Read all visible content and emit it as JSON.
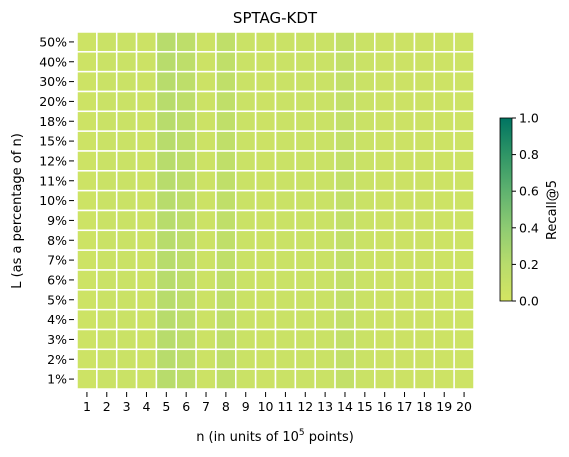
{
  "chart_data": {
    "type": "heatmap",
    "title": "SPTAG-KDT",
    "xlabel": "n (in units of 10",
    "xlabel_sup": "5",
    "xlabel_tail": " points)",
    "ylabel": "L (as a percentage of n)",
    "x_categories": [
      "1",
      "2",
      "3",
      "4",
      "5",
      "6",
      "7",
      "8",
      "9",
      "10",
      "11",
      "12",
      "13",
      "14",
      "15",
      "16",
      "17",
      "18",
      "19",
      "20"
    ],
    "y_categories": [
      "50%",
      "40%",
      "30%",
      "20%",
      "18%",
      "15%",
      "12%",
      "11%",
      "10%",
      "9%",
      "8%",
      "7%",
      "6%",
      "5%",
      "4%",
      "3%",
      "2%",
      "1%"
    ],
    "column_values": [
      0.05,
      0.07,
      0.07,
      0.06,
      0.2,
      0.16,
      0.06,
      0.14,
      0.07,
      0.06,
      0.07,
      0.07,
      0.07,
      0.12,
      0.07,
      0.06,
      0.06,
      0.06,
      0.05,
      0.05
    ],
    "colorbar": {
      "label": "Recall@5",
      "range": [
        0.0,
        1.0
      ],
      "ticks": [
        "0.0",
        "0.2",
        "0.4",
        "0.6",
        "0.8",
        "1.0"
      ],
      "colormap": [
        "#d4e562",
        "#b8dc6c",
        "#8ecb72",
        "#5fb26f",
        "#2f9566",
        "#007461"
      ]
    },
    "cell_border_color": "#ffffff"
  }
}
